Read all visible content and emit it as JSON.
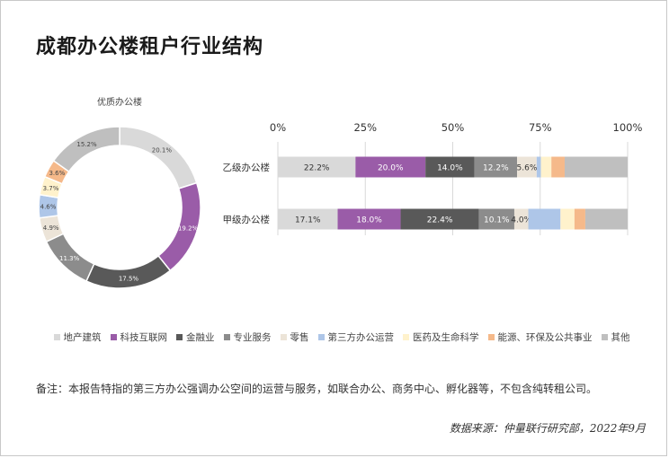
{
  "title": "成都办公楼租户行业结构",
  "categories": [
    "地产建筑",
    "科技互联网",
    "金融业",
    "专业服务",
    "零售",
    "第三方办公运营",
    "医药及生命科学",
    "能源、环保及公共事业",
    "其他"
  ],
  "colors": [
    "#d9d9d9",
    "#9a5ca8",
    "#595959",
    "#8c8c8c",
    "#ece4d8",
    "#aec6e8",
    "#fff2cc",
    "#f5b98a",
    "#bfbfbf"
  ],
  "chart_data": [
    {
      "type": "pie",
      "title": "优质办公楼",
      "categories": [
        "地产建筑",
        "科技互联网",
        "金融业",
        "专业服务",
        "零售",
        "第三方办公运营",
        "医药及生命科学",
        "能源、环保及公共事业",
        "其他"
      ],
      "values": [
        20.1,
        19.2,
        17.5,
        11.3,
        4.9,
        4.6,
        3.7,
        3.6,
        15.2
      ],
      "labels": [
        "20.1%",
        "19.2%",
        "17.5%",
        "11.3%",
        "4.9%",
        "4.6%",
        "3.7%",
        "3.6%",
        "15.2%"
      ]
    },
    {
      "type": "bar",
      "orientation": "horizontal",
      "stacked": true,
      "categories": [
        "乙级办公楼",
        "甲级办公楼"
      ],
      "series_names": [
        "地产建筑",
        "科技互联网",
        "金融业",
        "专业服务",
        "零售",
        "第三方办公运营",
        "医药及生命科学",
        "能源、环保及公共事业",
        "其他"
      ],
      "values": [
        [
          22.2,
          20.0,
          14.0,
          12.2,
          5.6,
          1.2,
          3.0,
          3.8,
          18.0
        ],
        [
          17.1,
          18.0,
          22.4,
          10.1,
          4.0,
          9.2,
          4.0,
          3.1,
          12.1
        ]
      ],
      "labels": [
        [
          "22.2%",
          "20.0%",
          "14.0%",
          "12.2%",
          "5.6%",
          "",
          "",
          "",
          ""
        ],
        [
          "17.1%",
          "18.0%",
          "22.4%",
          "10.1%",
          "4.0%",
          "",
          "",
          "",
          ""
        ]
      ],
      "xlim": [
        0,
        100
      ],
      "xticks": [
        "0%",
        "25%",
        "50%",
        "75%",
        "100%"
      ],
      "legend_position": "bottom"
    }
  ],
  "note": "备注：本报告特指的第三方办公强调办公空间的运营与服务，如联合办公、商务中心、孵化器等，不包含纯转租公司。",
  "source": "数据来源：仲量联行研究部，2022年9月"
}
